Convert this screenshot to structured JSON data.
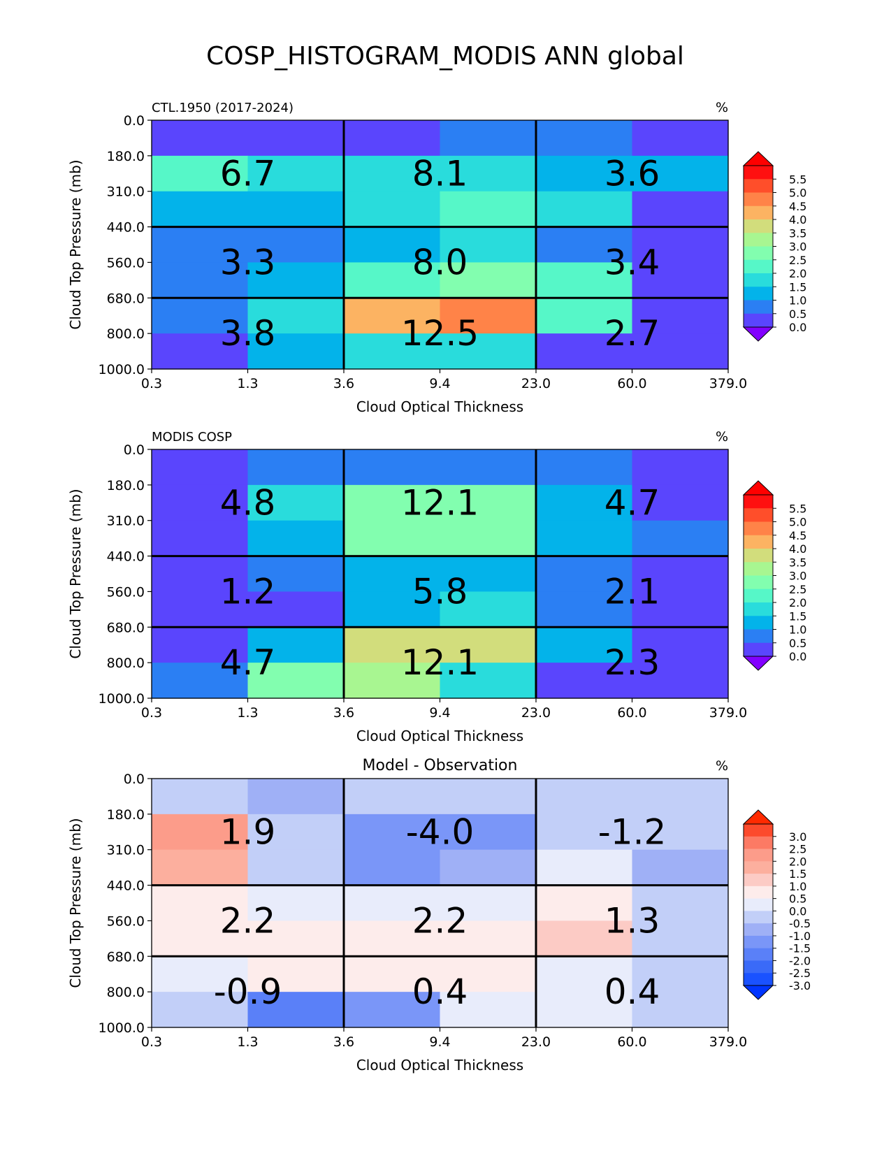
{
  "title": "COSP_HISTOGRAM_MODIS ANN global",
  "colormaps": {
    "rainbow_levels": [
      {
        "label": "0.0",
        "color": "#5a45fd"
      },
      {
        "label": "0.5",
        "color": "#2b7ff3"
      },
      {
        "label": "1.0",
        "color": "#03b3ea"
      },
      {
        "label": "1.5",
        "color": "#29dcdc"
      },
      {
        "label": "2.0",
        "color": "#56f7c8"
      },
      {
        "label": "2.5",
        "color": "#82feaf"
      },
      {
        "label": "3.0",
        "color": "#a8f691"
      },
      {
        "label": "3.5",
        "color": "#d2dd7c"
      },
      {
        "label": "4.0",
        "color": "#fcb362"
      },
      {
        "label": "4.5",
        "color": "#ff8348"
      },
      {
        "label": "5.0",
        "color": "#ff4e2a"
      },
      {
        "label": "5.5",
        "color": "#ff1010"
      }
    ],
    "rainbow_under": "#8200ff",
    "rainbow_over": "#ff0000",
    "diff_levels": [
      {
        "label": "-3.0",
        "color": "#1a52ff"
      },
      {
        "label": "-2.5",
        "color": "#3a6af8"
      },
      {
        "label": "-2.0",
        "color": "#5a80f8"
      },
      {
        "label": "-1.5",
        "color": "#7a96f8"
      },
      {
        "label": "-1.0",
        "color": "#9fb0f6"
      },
      {
        "label": "-0.5",
        "color": "#c2cff8"
      },
      {
        "label": "0.0",
        "color": "#e8ecfb"
      },
      {
        "label": "0.5",
        "color": "#fdeceb"
      },
      {
        "label": "1.0",
        "color": "#fccbc5"
      },
      {
        "label": "1.5",
        "color": "#fcaf9e"
      },
      {
        "label": "2.0",
        "color": "#fc9c8a"
      },
      {
        "label": "2.5",
        "color": "#fc7a64"
      },
      {
        "label": "3.0",
        "color": "#fc4a2c"
      }
    ],
    "diff_under": "#0035ff",
    "diff_over": "#ff2a00"
  },
  "chart_data": [
    {
      "type": "heatmap",
      "panel_title": "CTL.1950 (2017-2024)",
      "centered_title": "",
      "units": "%",
      "colormap": "rainbow",
      "xlabel": "Cloud Optical Thickness",
      "ylabel": "Cloud Top Pressure (mb)",
      "x_ticks": [
        "0.3",
        "1.3",
        "3.6",
        "9.4",
        "23.0",
        "60.0",
        "379.0"
      ],
      "y_ticks": [
        "0.0",
        "180.0",
        "310.0",
        "440.0",
        "560.0",
        "680.0",
        "800.0",
        "1000.0"
      ],
      "cells": [
        [
          0.3,
          0.3,
          0.3,
          0.8,
          0.8,
          0.3
        ],
        [
          2.3,
          1.8,
          1.8,
          1.8,
          1.3,
          1.3
        ],
        [
          1.3,
          1.3,
          1.8,
          2.3,
          1.8,
          0.3
        ],
        [
          0.8,
          0.8,
          1.3,
          1.8,
          0.8,
          0.3
        ],
        [
          0.8,
          1.3,
          2.3,
          2.8,
          2.3,
          0.3
        ],
        [
          0.8,
          1.8,
          4.3,
          4.8,
          2.3,
          0.3
        ],
        [
          0.3,
          1.3,
          1.8,
          1.8,
          0.3,
          0.3
        ]
      ],
      "block_values": [
        [
          "6.7",
          "8.1",
          "3.6"
        ],
        [
          "3.3",
          "8.0",
          "3.4"
        ],
        [
          "3.8",
          "12.5",
          "2.7"
        ]
      ],
      "colorbar_ticks": [
        "5.5",
        "5.0",
        "4.5",
        "4.0",
        "3.5",
        "3.0",
        "2.5",
        "2.0",
        "1.5",
        "1.0",
        "0.5",
        "0.0"
      ]
    },
    {
      "type": "heatmap",
      "panel_title": "MODIS COSP",
      "centered_title": "",
      "units": "%",
      "colormap": "rainbow",
      "xlabel": "Cloud Optical Thickness",
      "ylabel": "Cloud Top Pressure (mb)",
      "x_ticks": [
        "0.3",
        "1.3",
        "3.6",
        "9.4",
        "23.0",
        "60.0",
        "379.0"
      ],
      "y_ticks": [
        "0.0",
        "180.0",
        "310.0",
        "440.0",
        "560.0",
        "680.0",
        "800.0",
        "1000.0"
      ],
      "cells": [
        [
          0.3,
          0.8,
          0.8,
          0.8,
          0.8,
          0.3
        ],
        [
          0.3,
          1.8,
          2.8,
          2.8,
          1.3,
          0.3
        ],
        [
          0.3,
          1.3,
          2.8,
          2.8,
          1.3,
          0.8
        ],
        [
          0.3,
          0.8,
          1.3,
          1.3,
          0.8,
          0.3
        ],
        [
          0.3,
          0.3,
          1.3,
          1.8,
          0.8,
          0.3
        ],
        [
          0.3,
          1.3,
          3.8,
          3.8,
          1.3,
          0.3
        ],
        [
          0.8,
          2.8,
          3.3,
          1.8,
          0.3,
          0.3
        ]
      ],
      "block_values": [
        [
          "4.8",
          "12.1",
          "4.7"
        ],
        [
          "1.2",
          "5.8",
          "2.1"
        ],
        [
          "4.7",
          "12.1",
          "2.3"
        ]
      ],
      "colorbar_ticks": [
        "5.5",
        "5.0",
        "4.5",
        "4.0",
        "3.5",
        "3.0",
        "2.5",
        "2.0",
        "1.5",
        "1.0",
        "0.5",
        "0.0"
      ]
    },
    {
      "type": "heatmap",
      "panel_title": "",
      "centered_title": "Model - Observation",
      "units": "%",
      "colormap": "diff",
      "xlabel": "Cloud Optical Thickness",
      "ylabel": "Cloud Top Pressure (mb)",
      "x_ticks": [
        "0.3",
        "1.3",
        "3.6",
        "9.4",
        "23.0",
        "60.0",
        "379.0"
      ],
      "y_ticks": [
        "0.0",
        "180.0",
        "310.0",
        "440.0",
        "560.0",
        "680.0",
        "800.0",
        "1000.0"
      ],
      "cells": [
        [
          -0.2,
          -0.8,
          -0.2,
          -0.2,
          -0.2,
          -0.2
        ],
        [
          2.2,
          -0.2,
          -1.2,
          -1.2,
          -0.2,
          -0.2
        ],
        [
          1.7,
          -0.2,
          -1.2,
          -0.8,
          0.2,
          -0.8
        ],
        [
          0.8,
          0.2,
          0.2,
          0.2,
          0.8,
          -0.2
        ],
        [
          0.8,
          0.8,
          0.8,
          0.8,
          1.2,
          -0.2
        ],
        [
          0.2,
          0.8,
          0.8,
          0.8,
          0.2,
          -0.2
        ],
        [
          -0.2,
          -1.8,
          -1.2,
          0.2,
          0.2,
          -0.2
        ]
      ],
      "block_values": [
        [
          "1.9",
          "-4.0",
          "-1.2"
        ],
        [
          "2.2",
          "2.2",
          "1.3"
        ],
        [
          "-0.9",
          "0.4",
          "0.4"
        ]
      ],
      "colorbar_ticks": [
        "3.0",
        "2.5",
        "2.0",
        "1.5",
        "1.0",
        "0.5",
        "0.0",
        "-0.5",
        "-1.0",
        "-1.5",
        "-2.0",
        "-2.5",
        "-3.0"
      ]
    }
  ]
}
